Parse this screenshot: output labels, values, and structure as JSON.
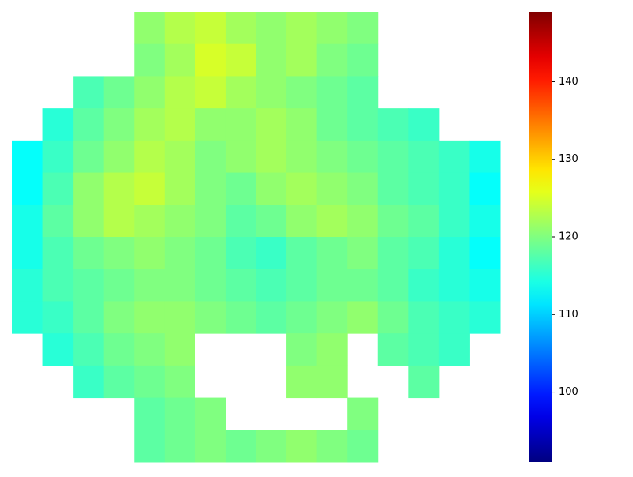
{
  "chart_data": {
    "type": "heatmap",
    "colormap": "jet",
    "zlim": [
      91,
      149
    ],
    "zticks": [
      100,
      110,
      120,
      130,
      140
    ],
    "values": [
      [
        null,
        null,
        null,
        null,
        121,
        123,
        124,
        122,
        121,
        122,
        121,
        120,
        null,
        null,
        null,
        null
      ],
      [
        null,
        null,
        null,
        null,
        120,
        122,
        125,
        124,
        121,
        122,
        120,
        119,
        null,
        null,
        null,
        null
      ],
      [
        null,
        null,
        117,
        119,
        121,
        123,
        124,
        122,
        121,
        120,
        119,
        118,
        null,
        null,
        null,
        null
      ],
      [
        null,
        115,
        118,
        120,
        122,
        123,
        121,
        121,
        122,
        121,
        119,
        118,
        117,
        116,
        null,
        null
      ],
      [
        113,
        116,
        119,
        121,
        123,
        122,
        120,
        121,
        122,
        121,
        120,
        119,
        118,
        117,
        116,
        114
      ],
      [
        113,
        117,
        121,
        123,
        124,
        122,
        120,
        119,
        121,
        122,
        121,
        120,
        118,
        117,
        116,
        113
      ],
      [
        114,
        118,
        121,
        123,
        122,
        121,
        120,
        118,
        119,
        121,
        122,
        121,
        119,
        118,
        116,
        114
      ],
      [
        114,
        117,
        119,
        120,
        121,
        120,
        119,
        117,
        116,
        118,
        119,
        120,
        118,
        117,
        115,
        113
      ],
      [
        115,
        117,
        118,
        119,
        120,
        120,
        119,
        118,
        117,
        118,
        119,
        119,
        118,
        116,
        115,
        114
      ],
      [
        115,
        116,
        118,
        120,
        121,
        121,
        120,
        119,
        118,
        119,
        120,
        121,
        119,
        117,
        116,
        115
      ],
      [
        null,
        115,
        117,
        119,
        120,
        121,
        null,
        null,
        null,
        120,
        121,
        null,
        118,
        117,
        116,
        null
      ],
      [
        null,
        null,
        116,
        118,
        119,
        120,
        null,
        null,
        null,
        121,
        121,
        null,
        null,
        118,
        null,
        null
      ],
      [
        null,
        null,
        null,
        null,
        118,
        119,
        120,
        null,
        null,
        null,
        null,
        120,
        null,
        null,
        null,
        null
      ],
      [
        null,
        null,
        null,
        null,
        118,
        119,
        120,
        119,
        120,
        121,
        120,
        119,
        null,
        null,
        null,
        null
      ]
    ]
  }
}
